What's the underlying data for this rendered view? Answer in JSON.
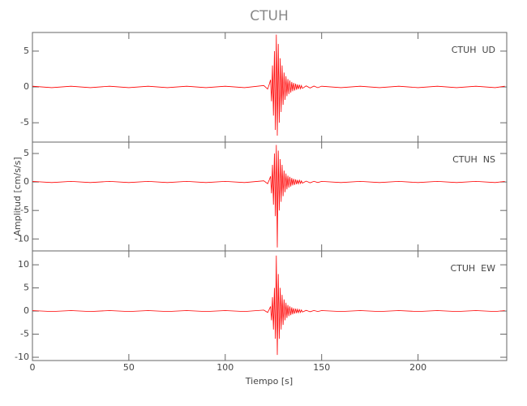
{
  "chart_data": [
    {
      "type": "line",
      "title": "CTUH",
      "annotation": "CTUH  UD",
      "x": [
        0,
        10,
        20,
        30,
        40,
        50,
        60,
        70,
        80,
        90,
        100,
        110,
        120,
        122,
        123,
        123.5,
        124,
        124.5,
        125,
        125.5,
        126,
        126.5,
        127,
        127.5,
        128,
        128.5,
        129,
        129.5,
        130,
        130.5,
        131,
        131.5,
        132,
        132.5,
        133,
        133.5,
        134,
        134.5,
        135,
        135.5,
        136,
        136.5,
        137,
        137.5,
        138,
        138.5,
        139,
        139.5,
        140,
        142,
        144,
        146,
        148,
        150,
        160,
        170,
        180,
        190,
        200,
        210,
        220,
        230,
        240,
        245
      ],
      "series": [
        {
          "color": "#ff0000",
          "values": [
            0.1,
            -0.1,
            0.1,
            -0.1,
            0.1,
            -0.1,
            0.1,
            -0.1,
            0.1,
            -0.1,
            0.1,
            -0.1,
            0.2,
            -0.3,
            0.5,
            1,
            -2,
            3,
            -4,
            5,
            -6,
            7.3,
            -6.8,
            6,
            -5,
            4,
            -3.5,
            3,
            -2.5,
            2,
            -1.8,
            1.5,
            -1.3,
            1.1,
            -1,
            0.9,
            -0.8,
            0.7,
            -0.6,
            0.55,
            -0.5,
            0.45,
            -0.4,
            0.35,
            -0.3,
            0.3,
            -0.25,
            0.2,
            -0.2,
            0.15,
            -0.15,
            0.12,
            -0.1,
            0.1,
            -0.1,
            0.1,
            -0.1,
            0.1,
            -0.1,
            0.1,
            -0.1,
            0.1,
            -0.1,
            0.1
          ]
        }
      ],
      "xlim": [
        0,
        246
      ],
      "xticks": [
        0,
        50,
        100,
        150,
        200
      ],
      "ylim": [
        -7.7,
        7.6
      ],
      "yticks": [
        -5,
        0,
        5
      ]
    },
    {
      "type": "line",
      "ylabel": "Amplitud [cm/s/s]",
      "annotation": "CTUH  NS",
      "x": [
        0,
        10,
        20,
        30,
        40,
        50,
        60,
        70,
        80,
        90,
        100,
        110,
        120,
        122,
        123,
        123.5,
        124,
        124.5,
        125,
        125.5,
        126,
        126.5,
        127,
        127.5,
        128,
        128.5,
        129,
        129.5,
        130,
        130.5,
        131,
        131.5,
        132,
        132.5,
        133,
        133.5,
        134,
        134.5,
        135,
        135.5,
        136,
        136.5,
        137,
        137.5,
        138,
        138.5,
        139,
        139.5,
        140,
        142,
        144,
        146,
        148,
        150,
        160,
        170,
        180,
        190,
        200,
        210,
        220,
        230,
        240,
        245
      ],
      "series": [
        {
          "color": "#ff0000",
          "values": [
            0.1,
            -0.1,
            0.1,
            -0.1,
            0.1,
            -0.1,
            0.1,
            -0.1,
            0.1,
            -0.1,
            0.1,
            -0.1,
            0.2,
            -0.3,
            0.5,
            1,
            -2,
            3,
            -4,
            5,
            -6,
            6.5,
            -11.5,
            5.5,
            -5,
            4,
            -3.5,
            3,
            -2.5,
            2,
            -1.8,
            1.5,
            -1.3,
            1.1,
            -1,
            0.9,
            -0.8,
            0.7,
            -0.6,
            0.55,
            -0.5,
            0.45,
            -0.4,
            0.35,
            -0.3,
            0.3,
            -0.25,
            0.2,
            -0.2,
            0.15,
            -0.15,
            0.12,
            -0.1,
            0.1,
            -0.1,
            0.1,
            -0.1,
            0.1,
            -0.1,
            0.1,
            -0.1,
            0.1,
            -0.1,
            0.1
          ]
        }
      ],
      "xlim": [
        0,
        246
      ],
      "xticks": [
        0,
        50,
        100,
        150,
        200
      ],
      "ylim": [
        -12.1,
        7.0
      ],
      "yticks": [
        -10,
        -5,
        0,
        5
      ]
    },
    {
      "type": "line",
      "xlabel": "Tiempo [s]",
      "annotation": "CTUH  EW",
      "x": [
        0,
        10,
        20,
        30,
        40,
        50,
        60,
        70,
        80,
        90,
        100,
        110,
        120,
        122,
        123,
        123.5,
        124,
        124.5,
        125,
        125.5,
        126,
        126.5,
        127,
        127.5,
        128,
        128.5,
        129,
        129.5,
        130,
        130.5,
        131,
        131.5,
        132,
        132.5,
        133,
        133.5,
        134,
        134.5,
        135,
        135.5,
        136,
        136.5,
        137,
        137.5,
        138,
        138.5,
        139,
        139.5,
        140,
        142,
        144,
        146,
        148,
        150,
        160,
        170,
        180,
        190,
        200,
        210,
        220,
        230,
        240,
        245
      ],
      "series": [
        {
          "color": "#ff0000",
          "values": [
            0.1,
            -0.1,
            0.1,
            -0.1,
            0.1,
            -0.1,
            0.1,
            -0.1,
            0.1,
            -0.1,
            0.1,
            -0.1,
            0.2,
            -0.3,
            0.5,
            1,
            -2,
            3,
            -4,
            5,
            -6,
            12,
            -9.5,
            8,
            -6,
            5,
            -4,
            3.5,
            -3,
            2.5,
            -2,
            1.8,
            -1.5,
            1.3,
            -1.1,
            1,
            -0.9,
            0.8,
            -0.7,
            0.6,
            -0.55,
            0.5,
            -0.45,
            0.4,
            -0.35,
            0.3,
            -0.3,
            0.25,
            -0.2,
            0.15,
            -0.15,
            0.12,
            -0.1,
            0.1,
            -0.1,
            0.1,
            -0.1,
            0.1,
            -0.1,
            0.1,
            -0.1,
            0.1,
            -0.1,
            0.1
          ]
        }
      ],
      "xlim": [
        0,
        246
      ],
      "xticks": [
        0,
        50,
        100,
        150,
        200
      ],
      "ylim": [
        -10.7,
        13.0
      ],
      "yticks": [
        -10,
        -5,
        0,
        5,
        10
      ]
    }
  ]
}
